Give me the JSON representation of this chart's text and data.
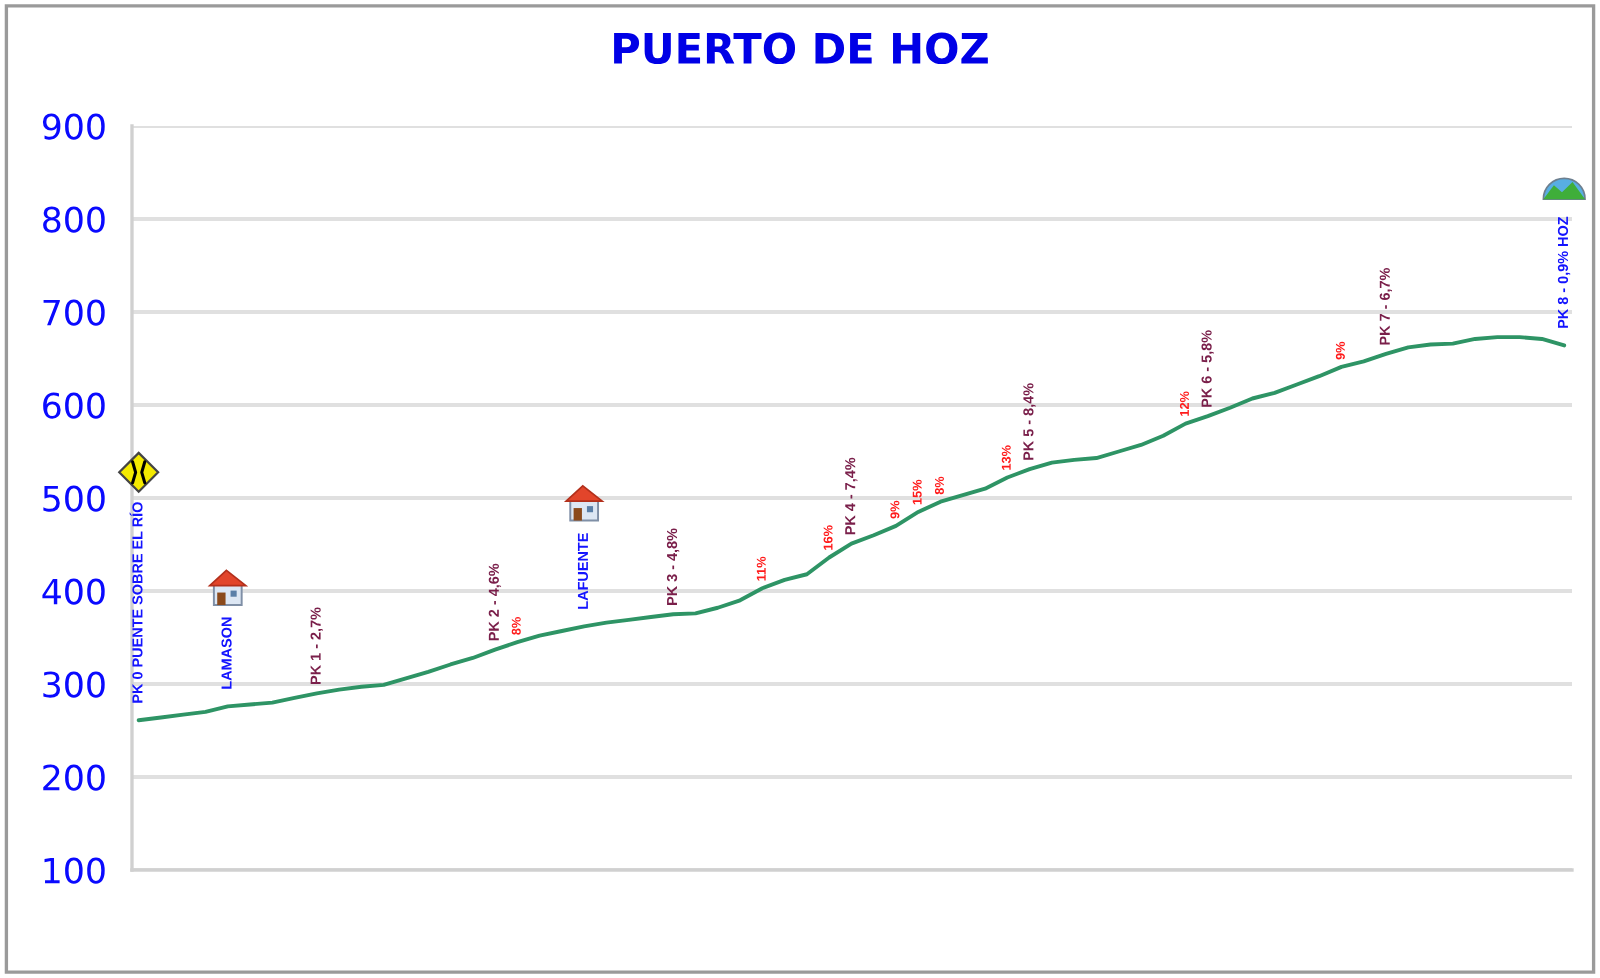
{
  "chart_data": {
    "type": "line",
    "title": "PUERTO DE HOZ",
    "categories": [
      null,
      null,
      null,
      null,
      null,
      null,
      null,
      null,
      null,
      null,
      null,
      null,
      null,
      null,
      null,
      null,
      null,
      null,
      null,
      null,
      null,
      null,
      null,
      null,
      null,
      null,
      null,
      null,
      null,
      null,
      null,
      null,
      null,
      null,
      null,
      null,
      null,
      null,
      null,
      null,
      null,
      null,
      null,
      null,
      null,
      null,
      null,
      null,
      null,
      null,
      null,
      null,
      null,
      null,
      null,
      null,
      null,
      null,
      null,
      null,
      null,
      null,
      null,
      null,
      null
    ],
    "series": [
      {
        "color": "#2e9465",
        "values": [
          261,
          264,
          267,
          270,
          276,
          278,
          280,
          285,
          290,
          294,
          297,
          299,
          306,
          313,
          321,
          328,
          337,
          345,
          352,
          357,
          362,
          366,
          369,
          372,
          375,
          376,
          382,
          390,
          403,
          412,
          418,
          436,
          451,
          460,
          470,
          485,
          496,
          503,
          510,
          522,
          531,
          538,
          541,
          543,
          550,
          557,
          567,
          580,
          588,
          597,
          607,
          613,
          622,
          631,
          641,
          647,
          655,
          662,
          665,
          666,
          671,
          673,
          673,
          671,
          664
        ]
      }
    ],
    "ylim": [
      100,
      900
    ],
    "yticks": [
      100,
      200,
      300,
      400,
      500,
      600,
      700,
      800,
      900
    ],
    "grid": "y",
    "tick_labels": "y",
    "annotations": [
      {
        "text": "PK 0 PUENTE SOBRE EL RÍO",
        "y": 261
      },
      {
        "text": "LAMASON",
        "y": 276
      },
      {
        "text": "LAFUENTE",
        "y": 362
      },
      {
        "text": "PK 8 - 0,9% HOZ",
        "y": 664
      },
      {
        "text": "PK 1 - 2,7%",
        "y": 290
      },
      {
        "text": "PK 2 - 4,6%",
        "y": 337
      },
      {
        "text": "PK 3 - 4,8%",
        "y": 375
      },
      {
        "text": "PK 4 - 7,4%",
        "y": 451
      },
      {
        "text": "PK 5 - 8,4%",
        "y": 531
      },
      {
        "text": "PK 6 - 5,8%",
        "y": 588
      },
      {
        "text": "PK 7 - 6,7%",
        "y": 655
      },
      {
        "text": "8%",
        "y": 345
      },
      {
        "text": "11%",
        "y": 403
      },
      {
        "text": "16%",
        "y": 436
      },
      {
        "text": "9%",
        "y": 470
      },
      {
        "text": "15%",
        "y": 485
      },
      {
        "text": "8%",
        "y": 496
      },
      {
        "text": "13%",
        "y": 522
      },
      {
        "text": "12%",
        "y": 580
      },
      {
        "text": "9%",
        "y": 641
      }
    ]
  }
}
